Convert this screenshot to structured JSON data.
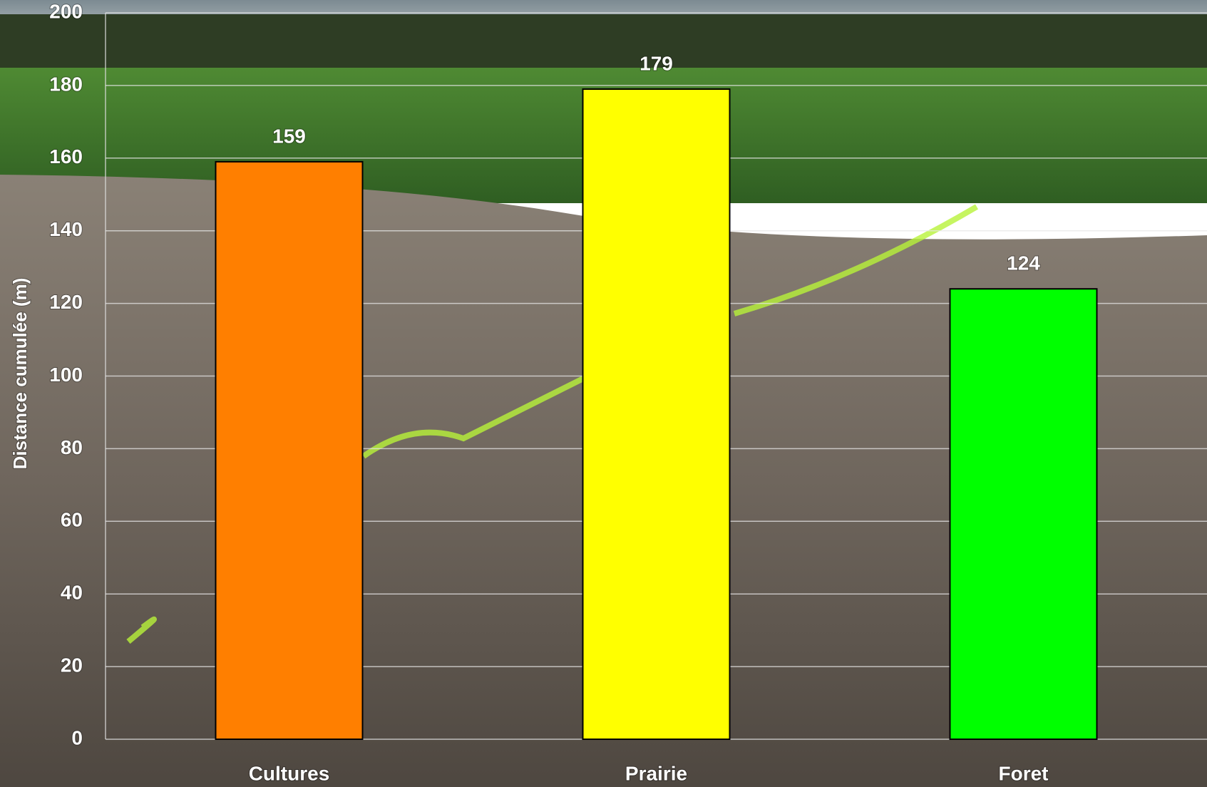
{
  "chart_data": {
    "type": "bar",
    "y_label": "Distance cumulée (m)",
    "categories": [
      "Cultures",
      "Prairie",
      "Foret"
    ],
    "values": [
      159,
      179,
      124
    ],
    "colors": [
      "#ff7f00",
      "#ffff00",
      "#00ff00"
    ],
    "ylim": [
      0,
      200
    ],
    "yticks": [
      0,
      20,
      40,
      60,
      80,
      100,
      120,
      140,
      160,
      180,
      200
    ],
    "grid": true
  }
}
